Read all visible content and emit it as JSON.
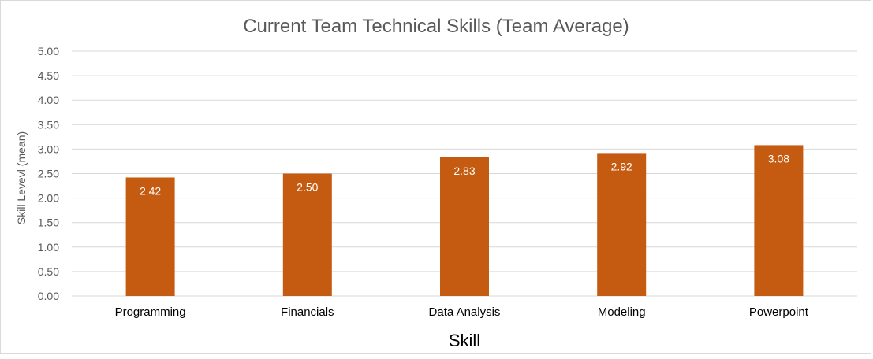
{
  "chart_data": {
    "type": "bar",
    "title": "Current Team Technical Skills (Team Average)",
    "xlabel": "Skill",
    "ylabel": "Skill Levevl (mean)",
    "categories": [
      "Programming",
      "Financials",
      "Data Analysis",
      "Modeling",
      "Powerpoint"
    ],
    "values": [
      2.42,
      2.5,
      2.83,
      2.92,
      3.08
    ],
    "value_labels": [
      "2.42",
      "2.50",
      "2.83",
      "2.92",
      "3.08"
    ],
    "ylim": [
      0,
      5
    ],
    "yticks": [
      "0.00",
      "0.50",
      "1.00",
      "1.50",
      "2.00",
      "2.50",
      "3.00",
      "3.50",
      "4.00",
      "4.50",
      "5.00"
    ],
    "grid": true,
    "legend": "none",
    "colors": {
      "bar": "#C55A11",
      "grid": "#d9d9d9",
      "text": "#595959",
      "label": "#ffffff"
    }
  }
}
